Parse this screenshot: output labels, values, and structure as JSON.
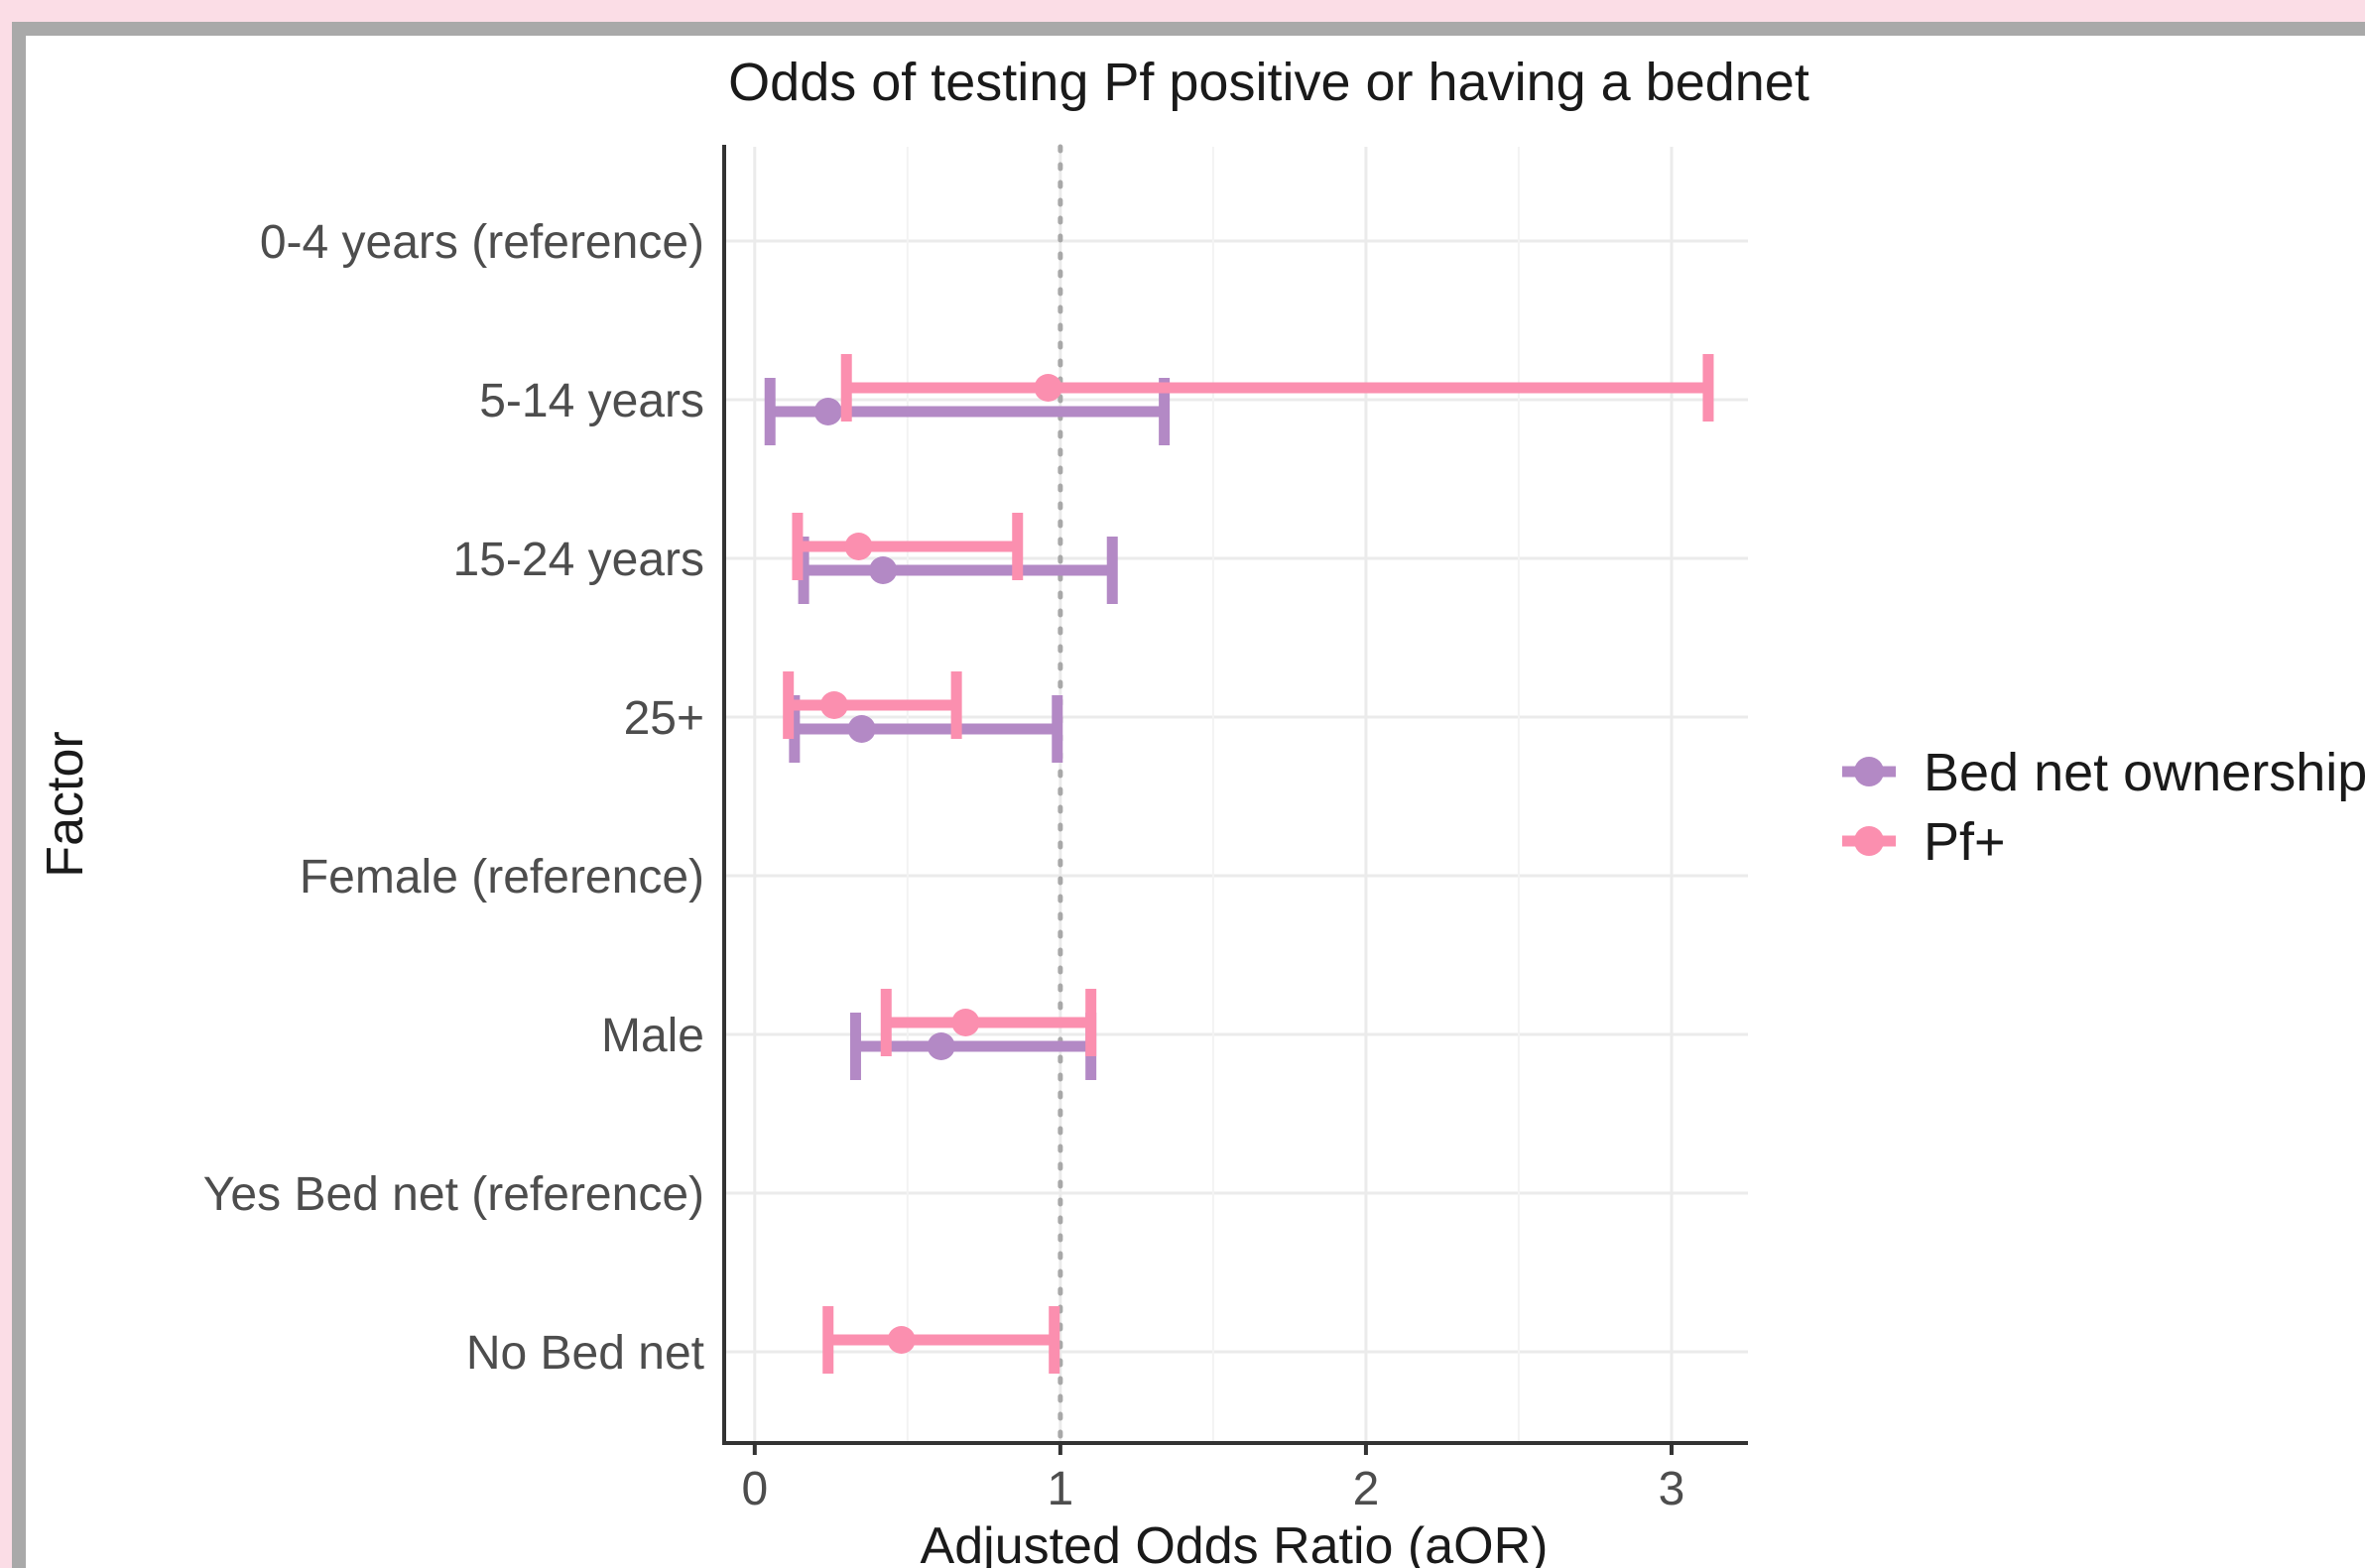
{
  "chart_data": {
    "type": "forest",
    "title": "Odds of testing Pf positive or having a bednet",
    "xlabel": "Adjusted Odds Ratio (aOR)",
    "ylabel": "Factor",
    "xlim": [
      -0.1,
      3.25
    ],
    "x_ticks": [
      0,
      1,
      2,
      3
    ],
    "reference_line": 1,
    "grid": true,
    "legend_position": "right",
    "categories": [
      "0-4 years (reference)",
      "5-14 years",
      "15-24 years",
      "25+",
      "Female (reference)",
      "Male",
      "Yes Bed net (reference)",
      "No Bed net"
    ],
    "series": [
      {
        "name": "Bed net ownership",
        "color": "#b389c5",
        "points": [
          {
            "category": "5-14 years",
            "estimate": 0.24,
            "lower": 0.05,
            "upper": 1.34
          },
          {
            "category": "15-24 years",
            "estimate": 0.42,
            "lower": 0.16,
            "upper": 1.17
          },
          {
            "category": "25+",
            "estimate": 0.35,
            "lower": 0.13,
            "upper": 0.99
          },
          {
            "category": "Male",
            "estimate": 0.61,
            "lower": 0.33,
            "upper": 1.1
          }
        ]
      },
      {
        "name": "Pf+",
        "color": "#fb8faf",
        "points": [
          {
            "category": "5-14 years",
            "estimate": 0.96,
            "lower": 0.3,
            "upper": 3.12
          },
          {
            "category": "15-24 years",
            "estimate": 0.34,
            "lower": 0.14,
            "upper": 0.86
          },
          {
            "category": "25+",
            "estimate": 0.26,
            "lower": 0.11,
            "upper": 0.66
          },
          {
            "category": "Male",
            "estimate": 0.69,
            "lower": 0.43,
            "upper": 1.1
          },
          {
            "category": "No Bed net",
            "estimate": 0.48,
            "lower": 0.24,
            "upper": 0.98
          }
        ]
      }
    ]
  }
}
